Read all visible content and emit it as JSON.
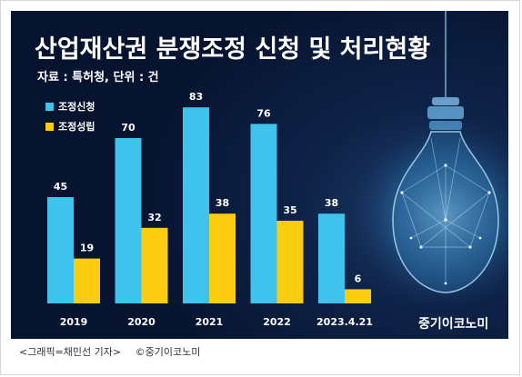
{
  "chart_data": {
    "type": "bar",
    "title": "산업재산권 분쟁조정 신청 및 처리현황",
    "subtitle": "자료 : 특허청, 단위 : 건",
    "categories": [
      "2019",
      "2020",
      "2021",
      "2022",
      "2023.4.21"
    ],
    "series": [
      {
        "name": "조정신청",
        "values": [
          45,
          70,
          83,
          76,
          38
        ],
        "color": "#3fc3ec"
      },
      {
        "name": "조정성립",
        "values": [
          19,
          32,
          38,
          35,
          6
        ],
        "color": "#fccc10"
      }
    ],
    "ylim": [
      0,
      100
    ],
    "grid": false,
    "legend_position": "top-left",
    "label_color": "#ffffff"
  },
  "decoration": {
    "logo": "중기이코노미",
    "illustration_icon": "lightbulb-icon"
  },
  "caption": {
    "credit": "<그래픽=채민선 기자>",
    "copyright": "©중기이코노미"
  }
}
